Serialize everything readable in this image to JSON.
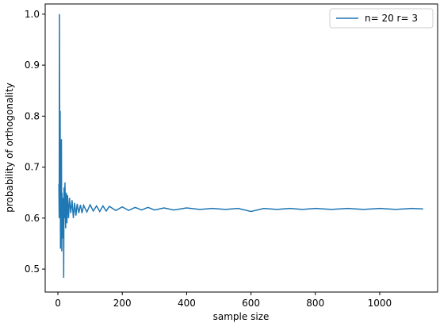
{
  "chart_data": {
    "type": "line",
    "xlabel": "sample size",
    "ylabel": "probability of orthogonality",
    "x": [
      3,
      4,
      5,
      6,
      7,
      8,
      9,
      10,
      11,
      12,
      13,
      14,
      15,
      16,
      17,
      18,
      19,
      20,
      22,
      24,
      26,
      28,
      30,
      33,
      36,
      40,
      44,
      48,
      52,
      56,
      60,
      65,
      70,
      75,
      80,
      90,
      100,
      110,
      120,
      130,
      140,
      150,
      160,
      180,
      200,
      220,
      240,
      260,
      280,
      300,
      330,
      360,
      400,
      440,
      480,
      520,
      560,
      600,
      640,
      680,
      720,
      760,
      800,
      850,
      900,
      950,
      1000,
      1050,
      1100,
      1135
    ],
    "series": [
      {
        "name": "n= 20 r= 3",
        "color": "#1f77b4",
        "values": [
          0.667,
          0.6,
          1.0,
          0.667,
          0.81,
          0.54,
          0.72,
          0.56,
          0.755,
          0.535,
          0.65,
          0.59,
          0.62,
          0.56,
          0.64,
          0.483,
          0.66,
          0.6,
          0.67,
          0.58,
          0.65,
          0.59,
          0.645,
          0.6,
          0.64,
          0.61,
          0.635,
          0.6,
          0.63,
          0.605,
          0.628,
          0.61,
          0.626,
          0.61,
          0.625,
          0.612,
          0.626,
          0.614,
          0.624,
          0.613,
          0.624,
          0.614,
          0.623,
          0.615,
          0.622,
          0.615,
          0.621,
          0.616,
          0.621,
          0.616,
          0.62,
          0.616,
          0.62,
          0.617,
          0.619,
          0.617,
          0.619,
          0.613,
          0.619,
          0.617,
          0.619,
          0.617,
          0.619,
          0.617,
          0.619,
          0.617,
          0.619,
          0.617,
          0.619,
          0.618
        ]
      }
    ],
    "xlim": [
      -39.5,
      1180
    ],
    "ylim": [
      0.455,
      1.02
    ],
    "xticks": [
      0,
      200,
      400,
      600,
      800,
      1000
    ],
    "yticks": [
      0.5,
      0.6,
      0.7,
      0.8,
      0.9,
      {
        "value": 1,
        "label": "1.0"
      }
    ],
    "legend": "upper right"
  }
}
